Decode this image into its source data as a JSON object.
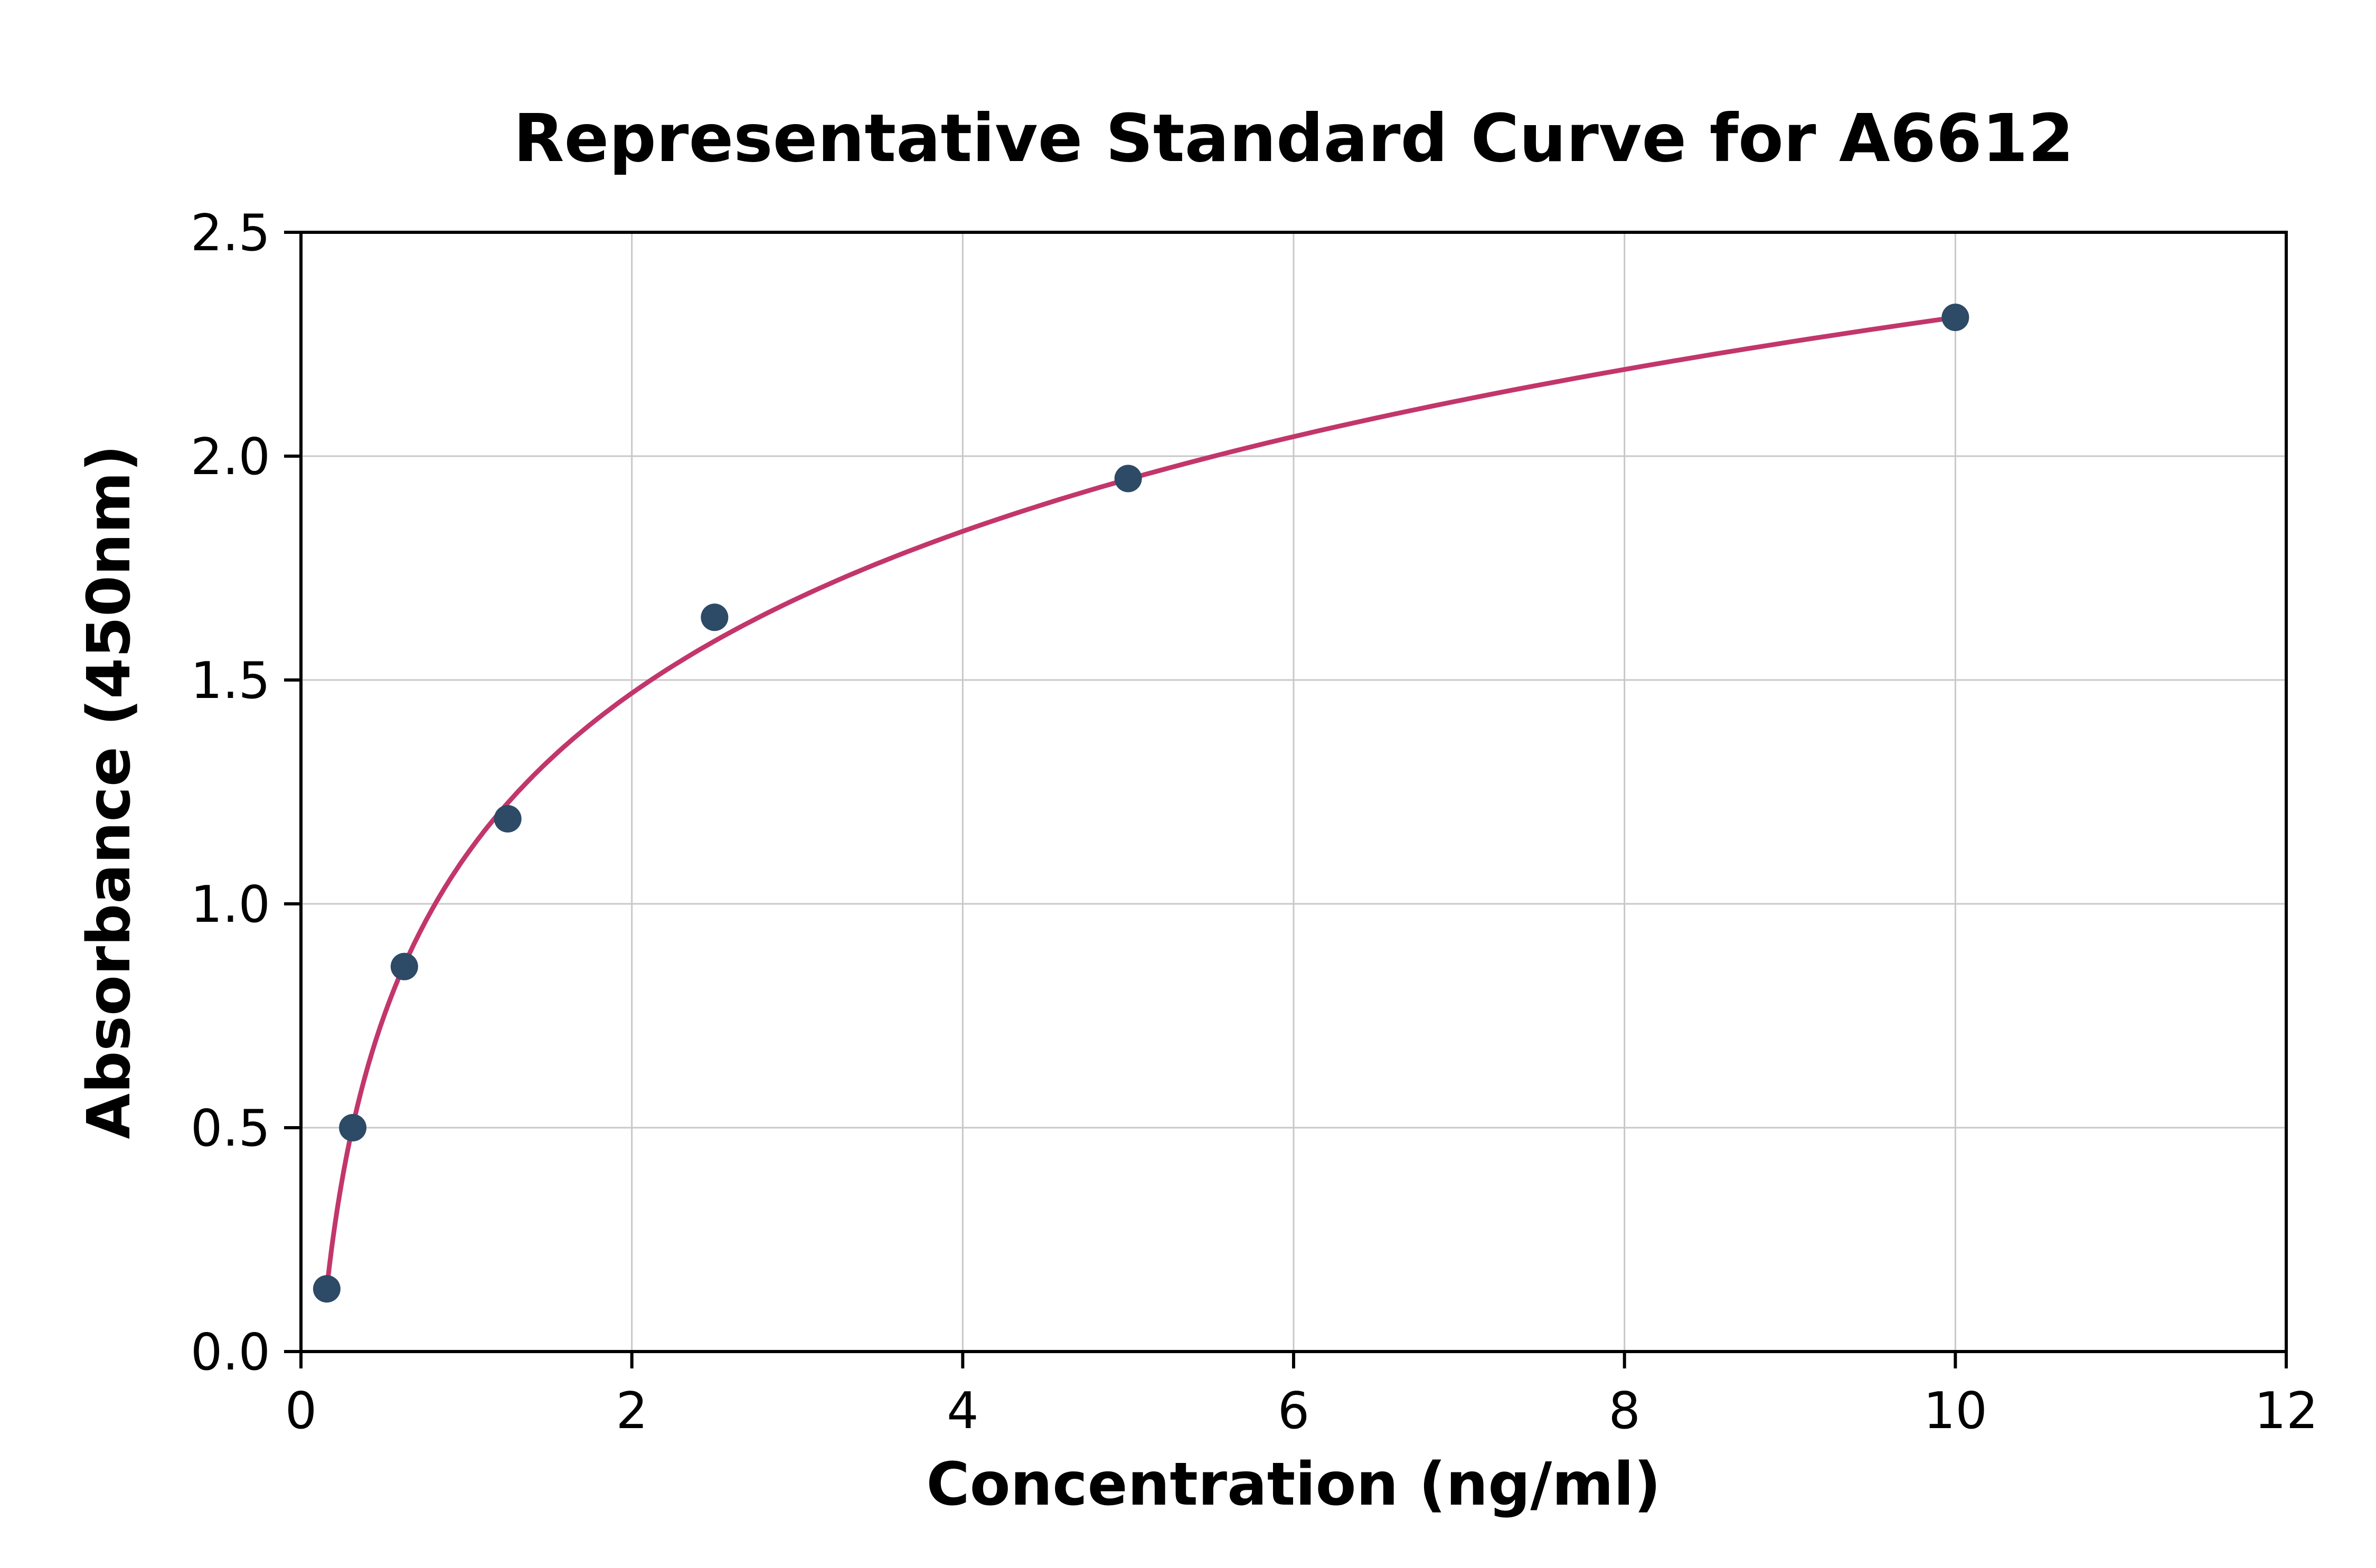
{
  "chart_data": {
    "type": "scatter",
    "title": "Representative Standard Curve for A6612",
    "xlabel": "Concentration (ng/ml)",
    "ylabel": "Absorbance (450nm)",
    "xlim": [
      0,
      12
    ],
    "ylim": [
      0,
      2.5
    ],
    "xticks": [
      0,
      2,
      4,
      6,
      8,
      10,
      12
    ],
    "xtick_labels": [
      "0",
      "2",
      "4",
      "6",
      "8",
      "10",
      "12"
    ],
    "yticks": [
      0,
      0.5,
      1.0,
      1.5,
      2.0,
      2.5
    ],
    "ytick_labels": [
      "0.0",
      "0.5",
      "1.0",
      "1.5",
      "2.0",
      "2.5"
    ],
    "grid": true,
    "legend": "none",
    "points": [
      {
        "x": 0.156,
        "y": 0.14
      },
      {
        "x": 0.313,
        "y": 0.5
      },
      {
        "x": 0.625,
        "y": 0.86
      },
      {
        "x": 1.25,
        "y": 1.19
      },
      {
        "x": 2.5,
        "y": 1.64
      },
      {
        "x": 5.0,
        "y": 1.95
      },
      {
        "x": 10.0,
        "y": 2.31
      }
    ],
    "fit": {
      "type": "logarithmic",
      "equation": "y = a + b*ln(x)",
      "a": 1.109,
      "b": 0.5216,
      "x_start": 0.156,
      "x_end": 10.0
    },
    "colors": {
      "marker": "#2d4a66",
      "curve": "#c2366b",
      "grid": "#c8c8c8",
      "axis": "#000000",
      "background": "#ffffff"
    }
  }
}
